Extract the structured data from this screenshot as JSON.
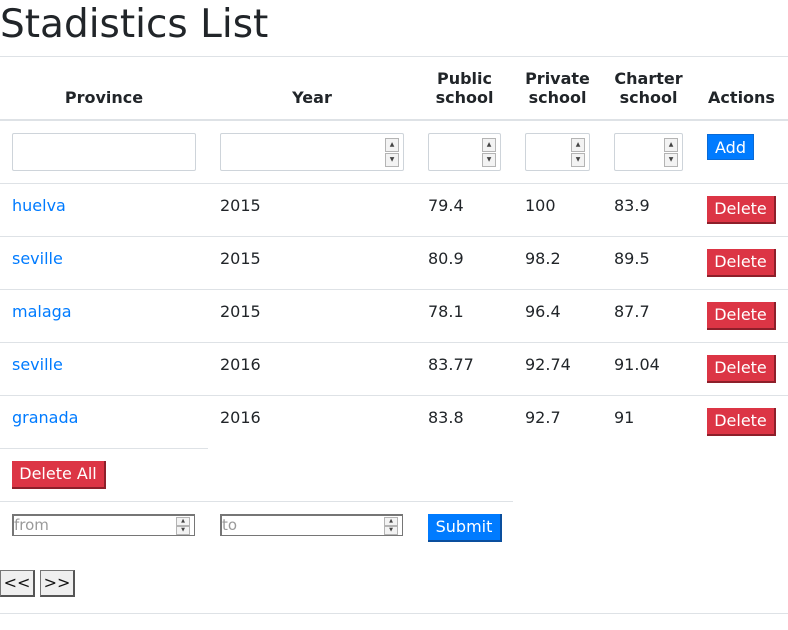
{
  "page": {
    "title": "Stadistics List"
  },
  "table": {
    "headers": {
      "province": "Province",
      "year": "Year",
      "public_l1": "Public",
      "public_l2": "school",
      "private_l1": "Private",
      "private_l2": "school",
      "charter_l1": "Charter",
      "charter_l2": "school",
      "actions": "Actions"
    },
    "add_label": "Add",
    "delete_label": "Delete",
    "rows": [
      {
        "province": "huelva",
        "year": "2015",
        "public": "79.4",
        "private": "100",
        "charter": "83.9"
      },
      {
        "province": "seville",
        "year": "2015",
        "public": "80.9",
        "private": "98.2",
        "charter": "89.5"
      },
      {
        "province": "malaga",
        "year": "2015",
        "public": "78.1",
        "private": "96.4",
        "charter": "87.7"
      },
      {
        "province": "seville",
        "year": "2016",
        "public": "83.77",
        "private": "92.74",
        "charter": "91.04"
      },
      {
        "province": "granada",
        "year": "2016",
        "public": "83.8",
        "private": "92.7",
        "charter": "91"
      }
    ]
  },
  "delete_all_label": "Delete All",
  "filter": {
    "from_placeholder": "from",
    "to_placeholder": "to",
    "submit_label": "Submit"
  },
  "pagination": {
    "prev_label": "<<",
    "next_label": ">>"
  },
  "icons": {
    "spinner_up": "spinner-up-icon",
    "spinner_down": "spinner-down-icon"
  },
  "colors": {
    "link": "#007bff",
    "primary": "#007bff",
    "danger": "#dc3545",
    "border": "#dee2e6"
  }
}
